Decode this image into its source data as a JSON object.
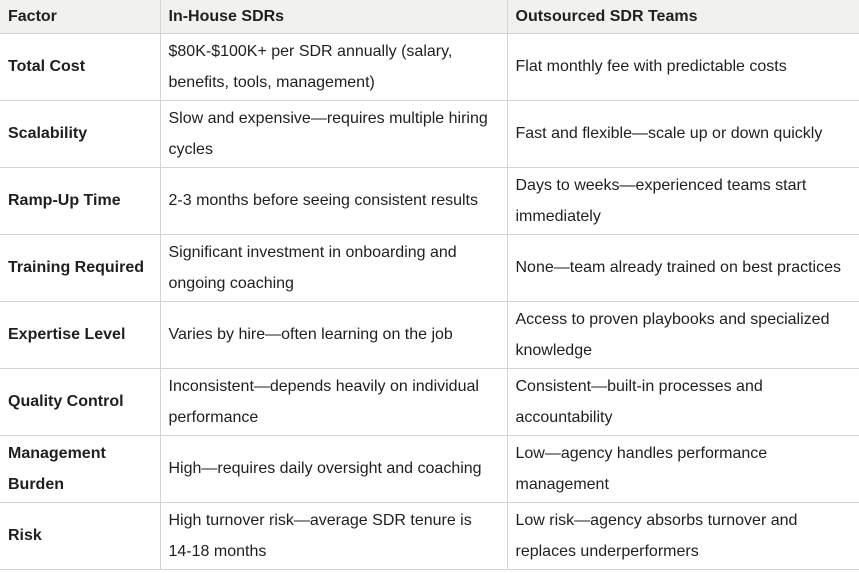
{
  "table": {
    "header": [
      "Factor",
      "In-House SDRs",
      "Outsourced SDR Teams"
    ],
    "rows": [
      [
        "Total Cost",
        "$80K-$100K+ per SDR annually (salary, benefits, tools, management)",
        "Flat monthly fee with predictable costs"
      ],
      [
        "Scalability",
        "Slow and expensive—requires multiple hiring cycles",
        "Fast and flexible—scale up or down quickly"
      ],
      [
        "Ramp-Up Time",
        "2-3 months before seeing consistent results",
        "Days to weeks—experienced teams start immediately"
      ],
      [
        "Training Required",
        "Significant investment in onboarding and ongoing coaching",
        "None—team already trained on best practices"
      ],
      [
        "Expertise Level",
        "Varies by hire—often learning on the job",
        "Access to proven playbooks and specialized knowledge"
      ],
      [
        "Quality Control",
        "Inconsistent—depends heavily on individual performance",
        "Consistent—built-in processes and accountability"
      ],
      [
        "Management Burden",
        "High—requires daily oversight and coaching",
        "Low—agency handles performance management"
      ],
      [
        "Risk",
        "High turnover risk—average SDR tenure is 14-18 months",
        "Low risk—agency absorbs turnover and replaces underperformers"
      ]
    ]
  }
}
